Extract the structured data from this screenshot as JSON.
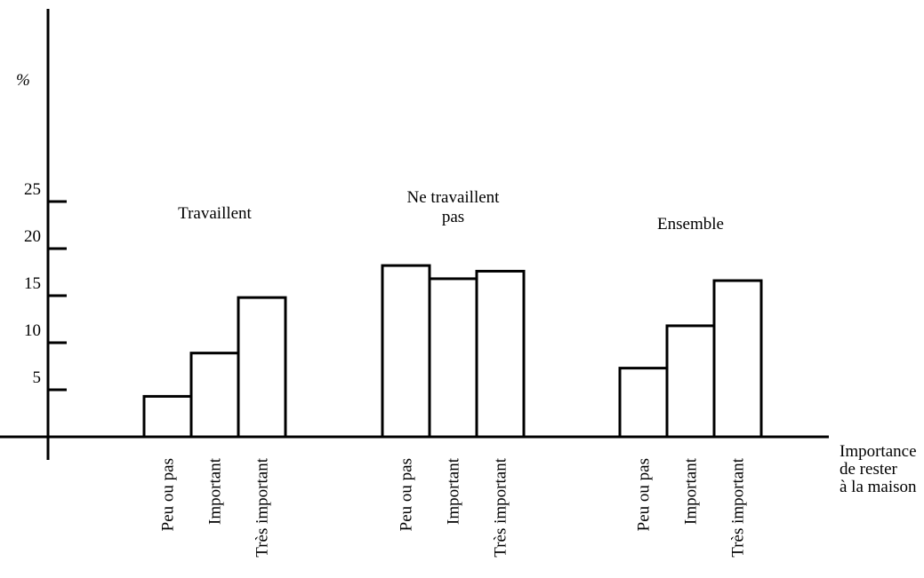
{
  "chart_data": {
    "type": "bar",
    "y_unit_label": "%",
    "y_ticks": [
      5,
      10,
      15,
      20,
      25
    ],
    "ylim": [
      0,
      45
    ],
    "x_axis_title_lines": [
      "Importance",
      "de rester",
      "à la maison"
    ],
    "groups": [
      {
        "name_lines": [
          "Travaillent"
        ],
        "categories": [
          "Peu ou pas",
          "Important",
          "Très important"
        ],
        "values": [
          4.3,
          8.9,
          14.8
        ]
      },
      {
        "name_lines": [
          "Ne travaillent",
          "pas"
        ],
        "categories": [
          "Peu ou pas",
          "Important",
          "Très important"
        ],
        "values": [
          18.2,
          16.8,
          17.6
        ]
      },
      {
        "name_lines": [
          "Ensemble"
        ],
        "categories": [
          "Peu ou pas",
          "Important",
          "Très important"
        ],
        "values": [
          7.3,
          11.8,
          16.6
        ]
      }
    ],
    "grid": false,
    "legend": "none"
  }
}
